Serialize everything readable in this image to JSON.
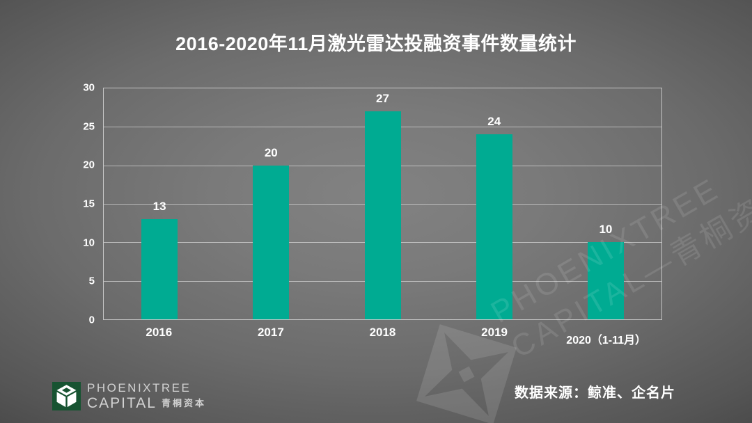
{
  "title": "2016-2020年11月激光雷达投融资事件数量统计",
  "chart_data": {
    "type": "bar",
    "categories": [
      "2016",
      "2017",
      "2018",
      "2019",
      "2020（1-11月）"
    ],
    "values": [
      13,
      20,
      27,
      24,
      10
    ],
    "title": "2016-2020年11月激光雷达投融资事件数量统计",
    "xlabel": "",
    "ylabel": "",
    "ylim": [
      0,
      30
    ],
    "yticks": [
      0,
      5,
      10,
      15,
      20,
      25,
      30
    ],
    "grid": true,
    "legend": "none",
    "bar_color": "#00AB92",
    "value_label_color": "#ffffff",
    "axis_text_color": "#ffffff"
  },
  "watermark": {
    "line1": "PHOENIXTREE",
    "line2": "CAPITAL—青桐资本"
  },
  "footer": {
    "source_text": "数据来源：鲸准、企名片",
    "logo": {
      "line1": "PHOENIXTREE",
      "line2": "CAPITAL",
      "line2_cn": "青桐资本",
      "bg_color": "#175331"
    }
  },
  "colors": {
    "bar": "#00AB92",
    "title_text": "#ffffff",
    "logo_green": "#175331"
  }
}
